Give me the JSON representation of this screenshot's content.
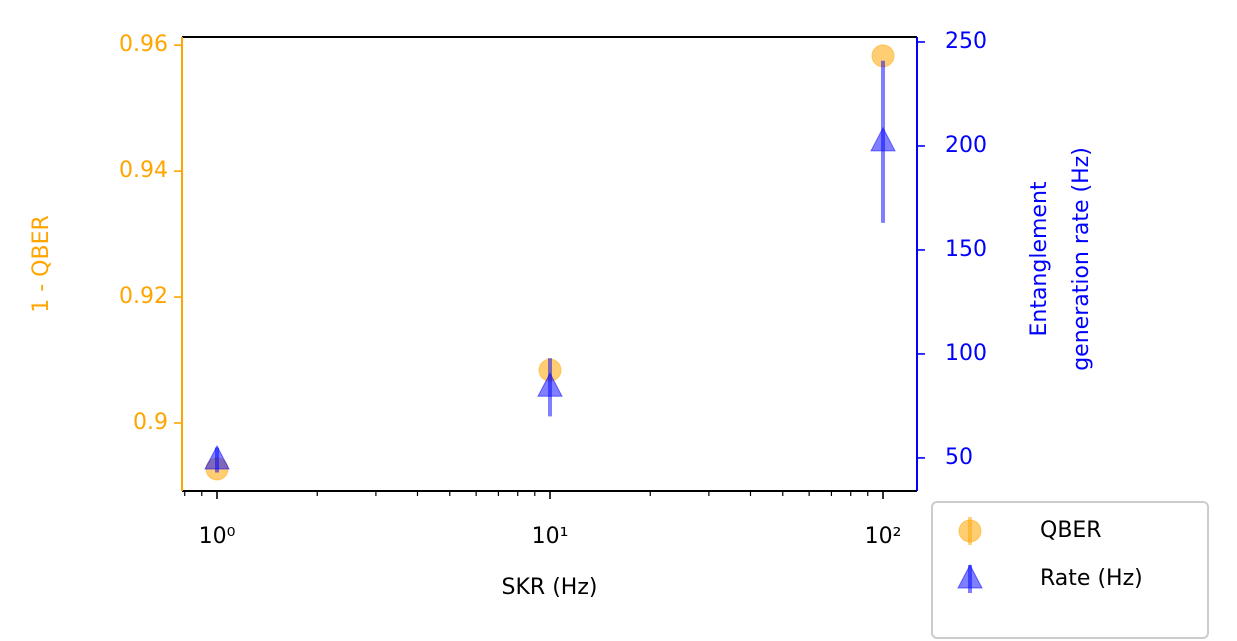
{
  "chart_data": {
    "type": "scatter",
    "xlabel": "SKR (Hz)",
    "ylabel": "1 - QBER",
    "y2label": [
      "Entanglement",
      "generation rate (Hz)"
    ],
    "xscale": "log",
    "xlim": [
      0.785,
      126.5
    ],
    "xticks": [
      {
        "value": 1,
        "label": "10⁰"
      },
      {
        "value": 10,
        "label": "10¹"
      },
      {
        "value": 100,
        "label": "10²"
      }
    ],
    "xminorticks": [
      0.8,
      0.9,
      2,
      3,
      4,
      5,
      6,
      7,
      8,
      9,
      20,
      30,
      40,
      50,
      60,
      70,
      80,
      90
    ],
    "ylim": [
      0.8892,
      0.9613
    ],
    "yticks": [
      0.9,
      0.92,
      0.94,
      0.96
    ],
    "y2lim": [
      34.1,
      252.4
    ],
    "y2ticks": [
      50,
      100,
      150,
      200,
      250
    ],
    "ycolor": "#ffa500",
    "y2color": "#0000ff",
    "legend": "lower right outside",
    "series": [
      {
        "name": "QBER",
        "color": "#ffa500",
        "marker": "circle",
        "axis": "y",
        "x": [
          1,
          10,
          100
        ],
        "values": [
          0.8927,
          0.9084,
          0.9583
        ]
      },
      {
        "name": "Rate (Hz)",
        "color": "#0000ff",
        "marker": "triangle",
        "axis": "y2",
        "x": [
          1,
          10,
          100
        ],
        "values": [
          49,
          84,
          202
        ],
        "errors": [
          6,
          14,
          39
        ]
      }
    ]
  }
}
